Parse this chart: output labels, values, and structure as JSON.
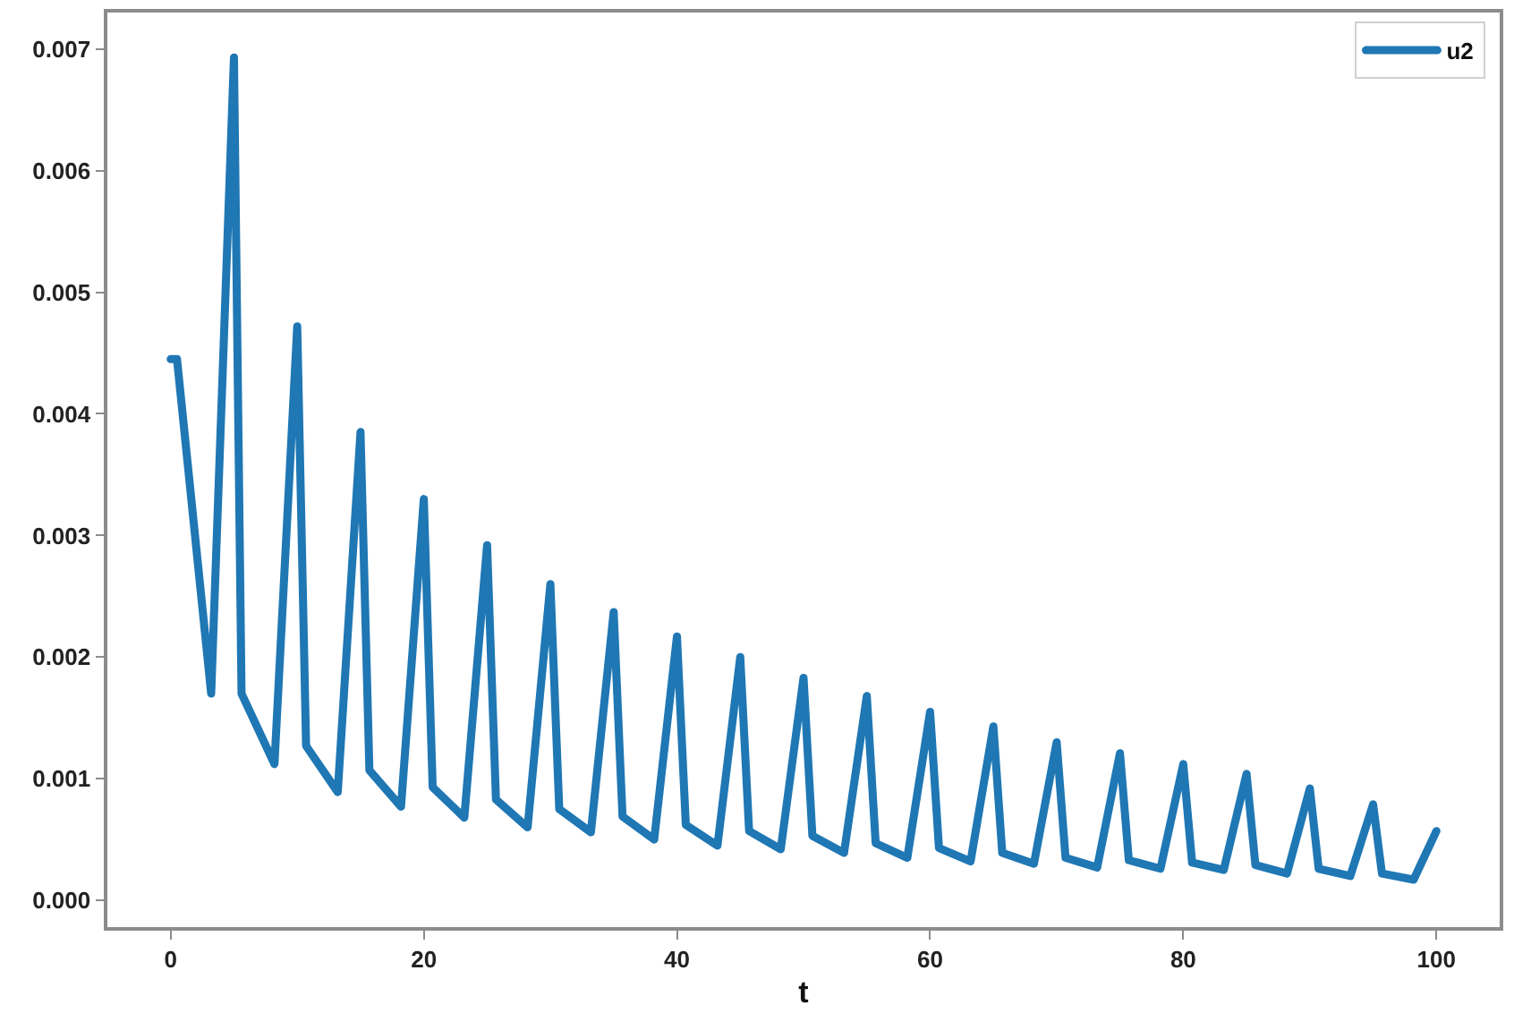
{
  "chart_data": {
    "type": "line",
    "xlabel": "t",
    "x": [
      0,
      0.5,
      3.2,
      5,
      5.6,
      8.2,
      10,
      10.7,
      13.2,
      15,
      15.7,
      18.2,
      20,
      20.7,
      23.2,
      25,
      25.7,
      28.2,
      30,
      30.7,
      33.2,
      35,
      35.7,
      38.2,
      40,
      40.7,
      43.2,
      45,
      45.7,
      48.2,
      50,
      50.7,
      53.2,
      55,
      55.7,
      58.2,
      60,
      60.7,
      63.2,
      65,
      65.7,
      68.2,
      70,
      70.7,
      73.2,
      75,
      75.7,
      78.2,
      80,
      80.7,
      83.2,
      85,
      85.7,
      88.2,
      90,
      90.7,
      93.2,
      95,
      95.7,
      98.2,
      100
    ],
    "series": [
      {
        "name": "u2",
        "color": "#1f77b4",
        "values": [
          0.00445,
          0.00445,
          0.0017,
          0.00693,
          0.0017,
          0.00112,
          0.00472,
          0.00127,
          0.00089,
          0.00385,
          0.00107,
          0.00077,
          0.0033,
          0.00093,
          0.00068,
          0.00292,
          0.00083,
          0.0006,
          0.0026,
          0.00075,
          0.00056,
          0.00237,
          0.00069,
          0.0005,
          0.00217,
          0.00062,
          0.00045,
          0.002,
          0.00057,
          0.00042,
          0.00183,
          0.00053,
          0.00039,
          0.00168,
          0.00047,
          0.00035,
          0.00155,
          0.00043,
          0.00032,
          0.00143,
          0.00039,
          0.0003,
          0.0013,
          0.00035,
          0.00027,
          0.00121,
          0.00033,
          0.00026,
          0.00112,
          0.00031,
          0.00025,
          0.00104,
          0.00029,
          0.00022,
          0.00092,
          0.00026,
          0.0002,
          0.00079,
          0.00022,
          0.00017,
          0.00057
        ]
      }
    ],
    "xlim": [
      -5,
      105
    ],
    "ylim": [
      -0.00022,
      0.0073
    ],
    "xticks": [
      0,
      20,
      40,
      60,
      80,
      100
    ],
    "yticks": [
      {
        "value": 0,
        "label": "0.000"
      },
      0.001,
      0.002,
      0.003,
      0.004,
      0.005,
      0.006,
      0.007
    ],
    "grid": false,
    "legend": "top right",
    "line_style": "solid"
  }
}
